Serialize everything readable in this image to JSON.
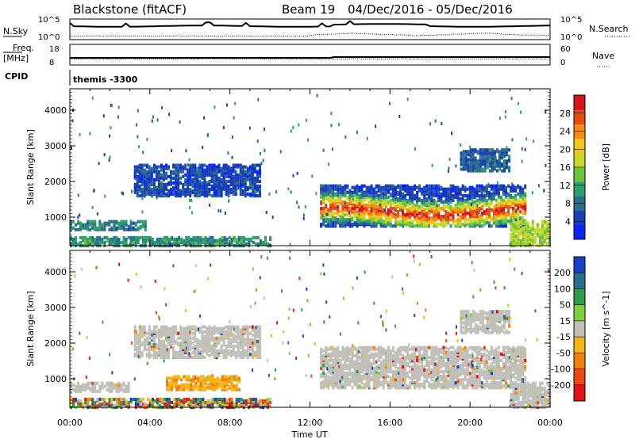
{
  "header": {
    "station": "Blackstone (fitACF)",
    "beam": "Beam 19",
    "date_range": "04/Dec/2016 - 05/Dec/2016"
  },
  "summary_panels": {
    "nsky_label": "N.Sky",
    "nsky_ticks": [
      "10^5",
      "10^0"
    ],
    "nsearch_label": "N.Search",
    "nsearch_ticks": [
      "10^5",
      "10^0"
    ],
    "freq_label_1": "Freq.",
    "freq_label_2": "[MHz]",
    "freq_ticks": [
      "18",
      "8"
    ],
    "nave_label": "Nave",
    "nave_ticks": [
      "60",
      "0"
    ],
    "cpid_label": "CPID",
    "cpid_value": "themis -3300"
  },
  "chart_data": [
    {
      "type": "heatmap",
      "name": "power",
      "ylabel": "Slant Range [km]",
      "ylim": [
        200,
        4600
      ],
      "y_ticks": [
        1000,
        2000,
        3000,
        4000
      ],
      "x_ticks": [
        "00:00",
        "04:00",
        "08:00",
        "12:00",
        "16:00",
        "20:00",
        "00:00"
      ],
      "xlim_hours": [
        0,
        24
      ],
      "colorbar": {
        "label": "Power [dB]",
        "range": [
          0,
          32
        ],
        "ticks": [
          4,
          8,
          12,
          16,
          20,
          24,
          28
        ],
        "colors": [
          "#0a24ff",
          "#1a3fb0",
          "#2a6e8e",
          "#2f9d6c",
          "#6cc33c",
          "#c8d82a",
          "#f5c417",
          "#f28e10",
          "#e84a12",
          "#d4141a"
        ]
      },
      "regions": [
        {
          "t": [
            0.0,
            3.8
          ],
          "r": [
            650,
            900
          ],
          "level": 0.25
        },
        {
          "t": [
            0.0,
            10.0
          ],
          "r": [
            200,
            450
          ],
          "level": 0.3
        },
        {
          "t": [
            3.2,
            9.5
          ],
          "r": [
            1600,
            2500
          ],
          "level": 0.12
        },
        {
          "t": [
            12.5,
            22.8
          ],
          "r": [
            750,
            1900
          ],
          "level": 0.75
        },
        {
          "t": [
            19.5,
            22.0
          ],
          "r": [
            2300,
            2900
          ],
          "level": 0.18
        },
        {
          "t": [
            22.0,
            24.0
          ],
          "r": [
            200,
            900
          ],
          "level": 0.5
        }
      ]
    },
    {
      "type": "heatmap",
      "name": "velocity",
      "ylabel": "Slant Range [km]",
      "ylim": [
        200,
        4600
      ],
      "y_ticks": [
        1000,
        2000,
        3000,
        4000
      ],
      "x_ticks": [
        "00:00",
        "04:00",
        "08:00",
        "12:00",
        "16:00",
        "20:00",
        "00:00"
      ],
      "xlabel": "Time UT",
      "xlim_hours": [
        0,
        24
      ],
      "colorbar": {
        "label": "Velocity [m s^-1]",
        "ticks": [
          "200",
          "100",
          "50",
          "15",
          "-15",
          "-50",
          "-100",
          "-200"
        ],
        "colors": [
          "#1a3fc8",
          "#2a6e8e",
          "#2f9d4c",
          "#7ad23a",
          "#c0c0b8",
          "#f5b517",
          "#f2800f",
          "#e84a12",
          "#e01414"
        ]
      },
      "regions": [
        {
          "t": [
            0.0,
            3.0
          ],
          "r": [
            650,
            900
          ],
          "level": "gray"
        },
        {
          "t": [
            4.8,
            8.5
          ],
          "r": [
            700,
            1100
          ],
          "level": "orange"
        },
        {
          "t": [
            0.0,
            10.0
          ],
          "r": [
            200,
            450
          ],
          "level": "mixed"
        },
        {
          "t": [
            3.2,
            9.5
          ],
          "r": [
            1600,
            2500
          ],
          "level": "gray"
        },
        {
          "t": [
            12.5,
            22.8
          ],
          "r": [
            750,
            1900
          ],
          "level": "gray"
        },
        {
          "t": [
            19.5,
            22.0
          ],
          "r": [
            2300,
            2900
          ],
          "level": "gray"
        },
        {
          "t": [
            22.0,
            24.0
          ],
          "r": [
            200,
            900
          ],
          "level": "gray"
        }
      ]
    }
  ]
}
